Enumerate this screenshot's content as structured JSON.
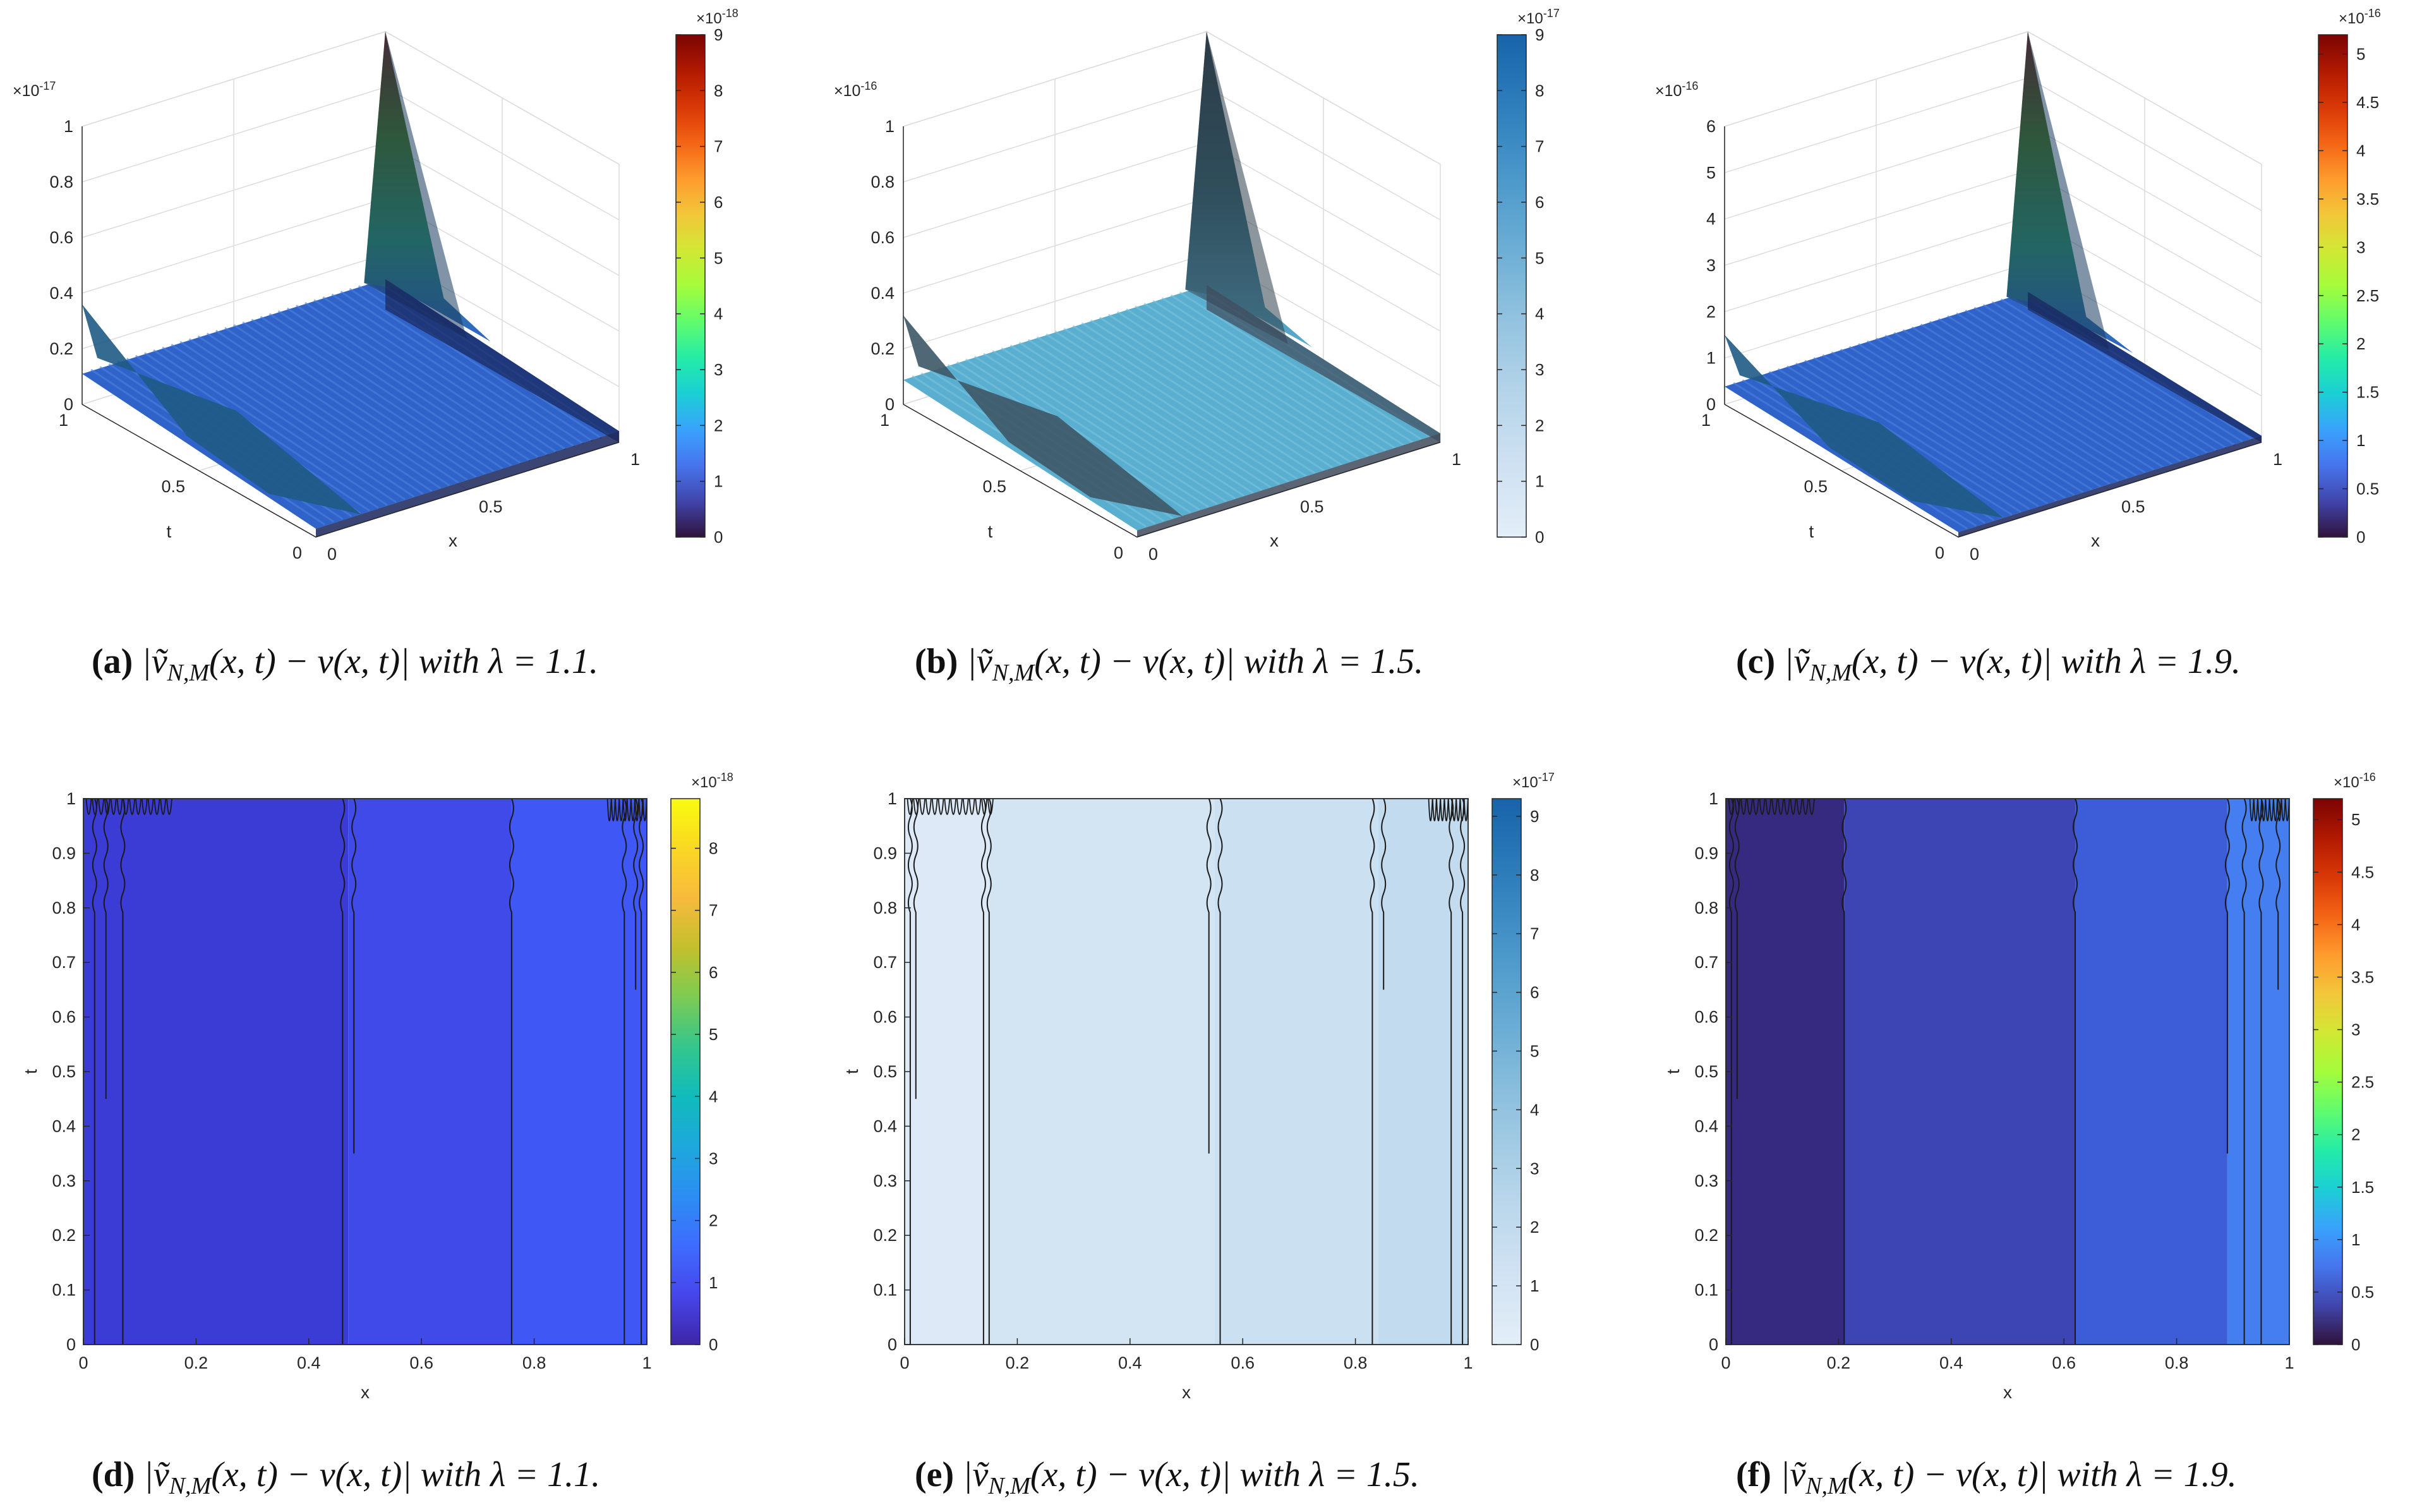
{
  "figure": {
    "captions": [
      {
        "label": "(a)",
        "text": "|ṽ",
        "sub": "N,M",
        "rest": "(x, t) − v(x, t)| with λ = 1.1."
      },
      {
        "label": "(b)",
        "text": "|ṽ",
        "sub": "N,M",
        "rest": "(x, t) − v(x, t)| with λ = 1.5."
      },
      {
        "label": "(c)",
        "text": "|ṽ",
        "sub": "N,M",
        "rest": "(x, t) − v(x, t)| with λ = 1.9."
      },
      {
        "label": "(d)",
        "text": "|ṽ",
        "sub": "N,M",
        "rest": "(x, t) − v(x, t)| with λ = 1.1."
      },
      {
        "label": "(e)",
        "text": "|ṽ",
        "sub": "N,M",
        "rest": "(x, t) − v(x, t)| with λ = 1.5."
      },
      {
        "label": "(f)",
        "text": "|ṽ",
        "sub": "N,M",
        "rest": "(x, t) − v(x, t)| with λ = 1.9."
      }
    ]
  },
  "chart_data": [
    {
      "type": "surface",
      "panel": "a",
      "lambda": 1.1,
      "xlabel": "x",
      "ylabel": "t",
      "z_ticks": [
        "0",
        "0.2",
        "0.4",
        "0.6",
        "0.8",
        "1"
      ],
      "z_exponent_base": "×10",
      "z_exponent_power": "-17",
      "x_ticks": [
        "0",
        "0.5",
        "1"
      ],
      "t_ticks": [
        "0",
        "0.5",
        "1"
      ],
      "z_range": [
        0,
        1
      ],
      "colorbar": {
        "ticks": [
          "0",
          "1",
          "2",
          "3",
          "4",
          "5",
          "6",
          "7",
          "8",
          "9"
        ],
        "exp_base": "×10",
        "exp_power": "-18",
        "colormap": "turbo",
        "range": [
          0,
          9
        ]
      },
      "surface_color": "#2f63c9",
      "shape": {
        "peak_z": 1.0,
        "corner_z": 0.36,
        "plateau_z": 0.1
      }
    },
    {
      "type": "surface",
      "panel": "b",
      "lambda": 1.5,
      "xlabel": "x",
      "ylabel": "t",
      "z_ticks": [
        "0",
        "0.2",
        "0.4",
        "0.6",
        "0.8",
        "1"
      ],
      "z_exponent_base": "×10",
      "z_exponent_power": "-16",
      "x_ticks": [
        "0",
        "0.5",
        "1"
      ],
      "t_ticks": [
        "0",
        "0.5",
        "1"
      ],
      "z_range": [
        0,
        1
      ],
      "colorbar": {
        "ticks": [
          "0",
          "1",
          "2",
          "3",
          "4",
          "5",
          "6",
          "7",
          "8",
          "9"
        ],
        "exp_base": "×10",
        "exp_power": "-17",
        "colormap": "blues",
        "range": [
          0,
          9
        ]
      },
      "surface_color": "#5aaed0",
      "shape": {
        "peak_z": 1.0,
        "corner_z": 0.32,
        "plateau_z": 0.08
      }
    },
    {
      "type": "surface",
      "panel": "c",
      "lambda": 1.9,
      "xlabel": "x",
      "ylabel": "t",
      "z_ticks": [
        "0",
        "1",
        "2",
        "3",
        "4",
        "5",
        "6"
      ],
      "z_exponent_base": "×10",
      "z_exponent_power": "-16",
      "x_ticks": [
        "0",
        "0.5",
        "1"
      ],
      "t_ticks": [
        "0",
        "0.5",
        "1"
      ],
      "z_range": [
        0,
        6
      ],
      "colorbar": {
        "ticks": [
          "0",
          "0.5",
          "1",
          "1.5",
          "2",
          "2.5",
          "3",
          "3.5",
          "4",
          "4.5",
          "5"
        ],
        "exp_base": "×10",
        "exp_power": "-16",
        "colormap": "turbo",
        "range": [
          0,
          5.2
        ]
      },
      "surface_color": "#2f63c9",
      "shape": {
        "peak_z": 6.0,
        "corner_z": 1.5,
        "plateau_z": 0.35
      }
    },
    {
      "type": "contour",
      "panel": "d",
      "lambda": 1.1,
      "xlabel": "x",
      "ylabel": "t",
      "x_ticks": [
        "0",
        "0.2",
        "0.4",
        "0.6",
        "0.8",
        "1"
      ],
      "y_ticks": [
        "0",
        "0.1",
        "0.2",
        "0.3",
        "0.4",
        "0.5",
        "0.6",
        "0.7",
        "0.8",
        "0.9",
        "1"
      ],
      "colorbar": {
        "ticks": [
          "0",
          "1",
          "2",
          "3",
          "4",
          "5",
          "6",
          "7",
          "8"
        ],
        "exp_base": "×10",
        "exp_power": "-18",
        "colormap": "parula",
        "range": [
          0,
          8.8
        ]
      },
      "bands": [
        {
          "x0": 0,
          "x1": 0.47,
          "color": "#3b3cd6"
        },
        {
          "x0": 0.47,
          "x1": 0.76,
          "color": "#3f4ae8"
        },
        {
          "x0": 0.76,
          "x1": 1,
          "color": "#3f58f5"
        }
      ],
      "contour_x": [
        0.02,
        0.04,
        0.07,
        0.46,
        0.48,
        0.76,
        0.96,
        0.98,
        0.99
      ]
    },
    {
      "type": "contour",
      "panel": "e",
      "lambda": 1.5,
      "xlabel": "x",
      "ylabel": "t",
      "x_ticks": [
        "0",
        "0.2",
        "0.4",
        "0.6",
        "0.8",
        "1"
      ],
      "y_ticks": [
        "0",
        "0.1",
        "0.2",
        "0.3",
        "0.4",
        "0.5",
        "0.6",
        "0.7",
        "0.8",
        "0.9",
        "1"
      ],
      "colorbar": {
        "ticks": [
          "0",
          "1",
          "2",
          "3",
          "4",
          "5",
          "6",
          "7",
          "8",
          "9"
        ],
        "exp_base": "×10",
        "exp_power": "-17",
        "colormap": "blues",
        "range": [
          0,
          9.3
        ]
      },
      "bands": [
        {
          "x0": 0,
          "x1": 0.15,
          "color": "#dde9f6"
        },
        {
          "x0": 0.15,
          "x1": 0.55,
          "color": "#d3e4f3"
        },
        {
          "x0": 0.55,
          "x1": 0.84,
          "color": "#cbe0f1"
        },
        {
          "x0": 0.84,
          "x1": 1,
          "color": "#c2dbee"
        }
      ],
      "contour_x": [
        0.01,
        0.02,
        0.14,
        0.15,
        0.54,
        0.56,
        0.83,
        0.85,
        0.97,
        0.99
      ]
    },
    {
      "type": "contour",
      "panel": "f",
      "lambda": 1.9,
      "xlabel": "x",
      "ylabel": "t",
      "x_ticks": [
        "0",
        "0.2",
        "0.4",
        "0.6",
        "0.8",
        "1"
      ],
      "y_ticks": [
        "0",
        "0.1",
        "0.2",
        "0.3",
        "0.4",
        "0.5",
        "0.6",
        "0.7",
        "0.8",
        "0.9",
        "1"
      ],
      "colorbar": {
        "ticks": [
          "0",
          "0.5",
          "1",
          "1.5",
          "2",
          "2.5",
          "3",
          "3.5",
          "4",
          "4.5",
          "5"
        ],
        "exp_base": "×10",
        "exp_power": "-16",
        "colormap": "turbo",
        "range": [
          0,
          5.2
        ]
      },
      "bands": [
        {
          "x0": 0,
          "x1": 0.21,
          "color": "#362a80"
        },
        {
          "x0": 0.21,
          "x1": 0.62,
          "color": "#3d45b5"
        },
        {
          "x0": 0.62,
          "x1": 0.89,
          "color": "#3c5cd8"
        },
        {
          "x0": 0.89,
          "x1": 1,
          "color": "#447ef0"
        }
      ],
      "contour_x": [
        0.01,
        0.02,
        0.21,
        0.62,
        0.89,
        0.92,
        0.95,
        0.98
      ]
    }
  ]
}
